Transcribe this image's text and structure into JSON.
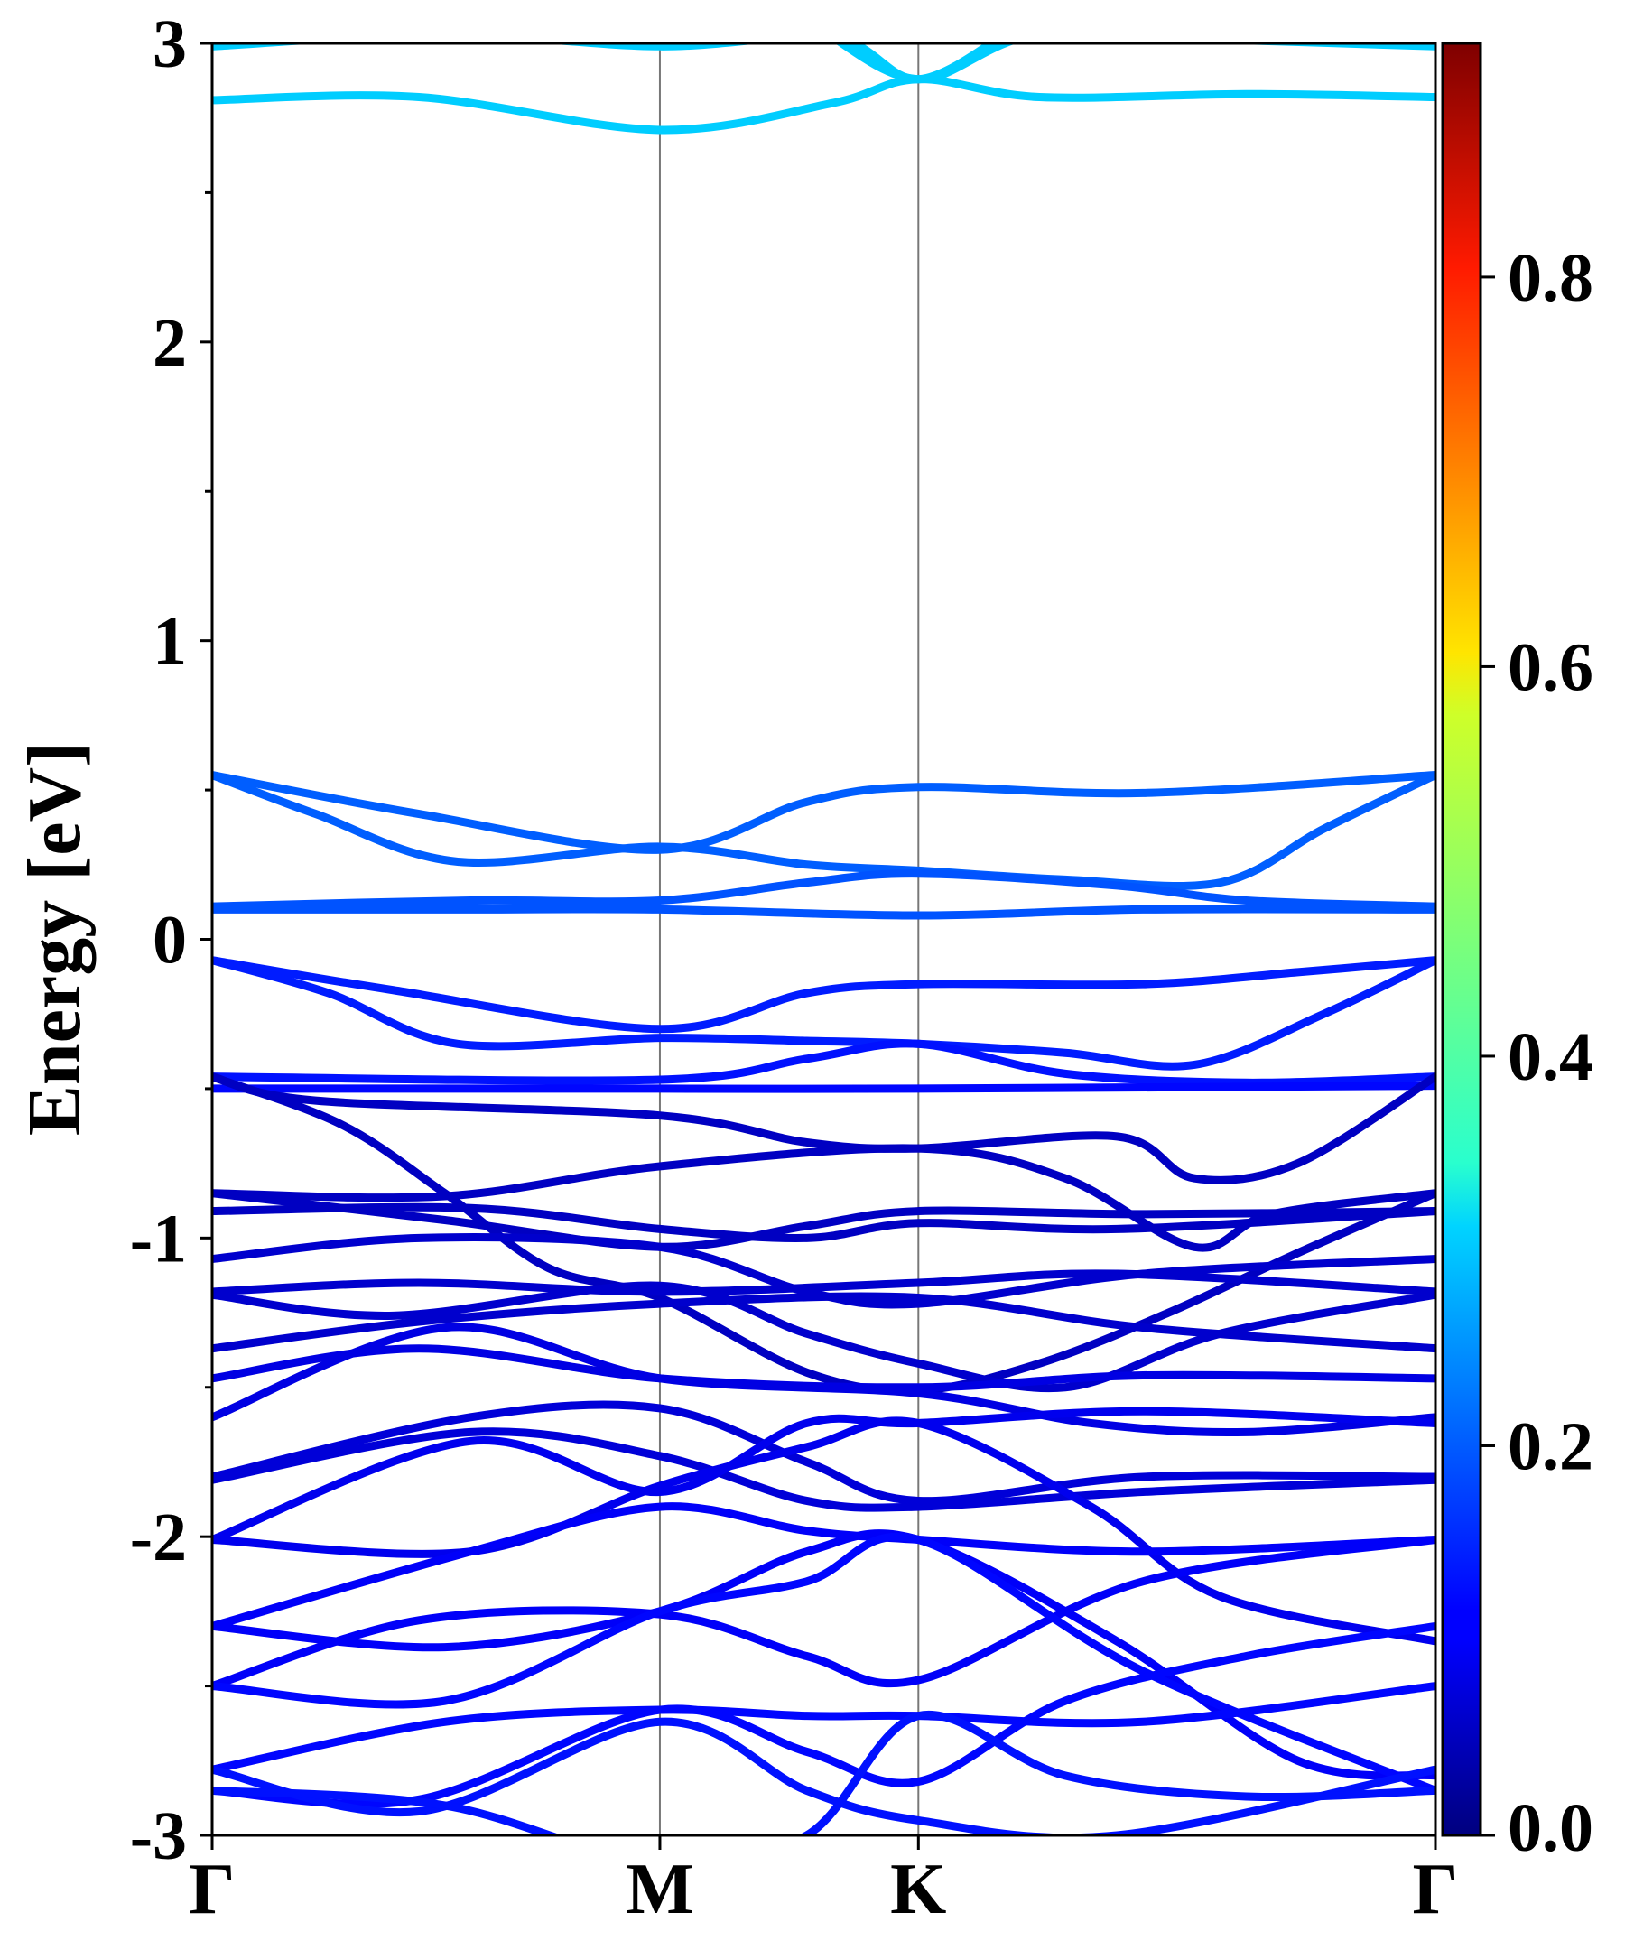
{
  "chart_data": {
    "type": "line",
    "ylabel": "Energy [eV]",
    "ylim": [
      -3,
      3
    ],
    "y_ticks": [
      "-3",
      "-2",
      "-1",
      "0",
      "1",
      "2",
      "3"
    ],
    "x_ticks": [
      "Γ",
      "M",
      "K",
      "Γ"
    ],
    "x_tick_positions": [
      0,
      1.732,
      2.732,
      4.732
    ],
    "xlim": [
      0,
      4.732
    ],
    "grid": false,
    "vertical_lines_at_high_symmetry_points": true,
    "colorbar": {
      "colormap": "jet",
      "range": [
        0,
        0.92
      ],
      "ticks": [
        "0.0",
        "0.2",
        "0.4",
        "0.6",
        "0.8"
      ],
      "tick_values": [
        0,
        0.2,
        0.4,
        0.6,
        0.8
      ]
    },
    "series": [
      {
        "weight": 0.3,
        "points": [
          [
            0,
            2.99
          ],
          [
            0.9,
            3.03
          ],
          [
            1.732,
            2.99
          ],
          [
            2.4,
            3.02
          ],
          [
            2.732,
            2.88
          ],
          [
            3.1,
            3.05
          ]
        ]
      },
      {
        "weight": 0.3,
        "points": [
          [
            0,
            2.81
          ],
          [
            0.8,
            2.82
          ],
          [
            1.732,
            2.71
          ],
          [
            2.4,
            2.8
          ],
          [
            2.732,
            2.88
          ],
          [
            3.2,
            2.82
          ],
          [
            4.0,
            2.83
          ],
          [
            4.732,
            2.82
          ]
        ]
      },
      {
        "weight": 0.3,
        "points": [
          [
            2.35,
            3.05
          ],
          [
            2.732,
            2.88
          ],
          [
            3.2,
            3.03
          ],
          [
            4.0,
            3.01
          ],
          [
            4.732,
            2.99
          ]
        ]
      },
      {
        "weight": 0.2,
        "points": [
          [
            0,
            0.55
          ],
          [
            0.8,
            0.42
          ],
          [
            1.732,
            0.3
          ],
          [
            2.3,
            0.46
          ],
          [
            2.732,
            0.51
          ],
          [
            3.6,
            0.49
          ],
          [
            4.732,
            0.55
          ]
        ]
      },
      {
        "weight": 0.2,
        "points": [
          [
            0,
            0.55
          ],
          [
            0.4,
            0.42
          ],
          [
            0.95,
            0.26
          ],
          [
            1.732,
            0.31
          ],
          [
            2.3,
            0.25
          ],
          [
            2.732,
            0.23
          ],
          [
            3.3,
            0.2
          ],
          [
            3.9,
            0.19
          ],
          [
            4.3,
            0.37
          ],
          [
            4.732,
            0.55
          ]
        ]
      },
      {
        "weight": 0.19,
        "points": [
          [
            0,
            0.11
          ],
          [
            1.0,
            0.13
          ],
          [
            1.732,
            0.13
          ],
          [
            2.3,
            0.19
          ],
          [
            2.732,
            0.22
          ],
          [
            3.5,
            0.18
          ],
          [
            4.0,
            0.13
          ],
          [
            4.732,
            0.11
          ]
        ]
      },
      {
        "weight": 0.19,
        "points": [
          [
            0,
            0.1
          ],
          [
            1.0,
            0.1
          ],
          [
            1.732,
            0.1
          ],
          [
            2.732,
            0.08
          ],
          [
            3.6,
            0.1
          ],
          [
            4.732,
            0.1
          ]
        ]
      },
      {
        "weight": 0.14,
        "points": [
          [
            0,
            -0.07
          ],
          [
            0.7,
            -0.17
          ],
          [
            1.732,
            -0.3
          ],
          [
            2.3,
            -0.18
          ],
          [
            2.732,
            -0.15
          ],
          [
            3.6,
            -0.15
          ],
          [
            4.2,
            -0.11
          ],
          [
            4.732,
            -0.07
          ]
        ]
      },
      {
        "weight": 0.14,
        "points": [
          [
            0,
            -0.07
          ],
          [
            0.45,
            -0.18
          ],
          [
            0.95,
            -0.35
          ],
          [
            1.732,
            -0.33
          ],
          [
            2.3,
            -0.34
          ],
          [
            2.732,
            -0.35
          ],
          [
            3.3,
            -0.38
          ],
          [
            3.8,
            -0.42
          ],
          [
            4.3,
            -0.25
          ],
          [
            4.732,
            -0.07
          ]
        ]
      },
      {
        "weight": 0.13,
        "points": [
          [
            0,
            -0.46
          ],
          [
            1.732,
            -0.47
          ],
          [
            2.3,
            -0.4
          ],
          [
            2.732,
            -0.35
          ],
          [
            3.3,
            -0.45
          ],
          [
            4.0,
            -0.48
          ],
          [
            4.732,
            -0.46
          ]
        ]
      },
      {
        "weight": 0.12,
        "points": [
          [
            0,
            -0.5
          ],
          [
            1.732,
            -0.5
          ],
          [
            2.732,
            -0.5
          ],
          [
            4.732,
            -0.49
          ]
        ]
      },
      {
        "weight": 0.06,
        "points": [
          [
            0,
            -0.46
          ],
          [
            0.4,
            -0.54
          ],
          [
            1.732,
            -0.59
          ],
          [
            2.3,
            -0.68
          ],
          [
            2.732,
            -0.7
          ],
          [
            3.5,
            -0.66
          ],
          [
            3.8,
            -0.8
          ],
          [
            4.2,
            -0.75
          ],
          [
            4.732,
            -0.46
          ]
        ]
      },
      {
        "weight": 0.06,
        "points": [
          [
            0,
            -0.46
          ],
          [
            0.5,
            -0.62
          ],
          [
            0.9,
            -0.85
          ],
          [
            1.3,
            -1.1
          ],
          [
            1.732,
            -1.2
          ],
          [
            2.3,
            -1.45
          ],
          [
            2.732,
            -1.51
          ],
          [
            3.2,
            -1.42
          ],
          [
            3.7,
            -1.25
          ],
          [
            4.2,
            -1.05
          ],
          [
            4.732,
            -0.85
          ]
        ]
      },
      {
        "weight": 0.06,
        "points": [
          [
            0,
            -0.85
          ],
          [
            0.9,
            -0.86
          ],
          [
            1.732,
            -0.76
          ],
          [
            2.732,
            -0.7
          ],
          [
            3.3,
            -0.8
          ],
          [
            3.8,
            -1.03
          ],
          [
            4.1,
            -0.92
          ],
          [
            4.732,
            -0.85
          ]
        ]
      },
      {
        "weight": 0.06,
        "points": [
          [
            0,
            -0.85
          ],
          [
            0.9,
            -0.94
          ],
          [
            1.732,
            -1.03
          ],
          [
            2.3,
            -0.96
          ],
          [
            2.732,
            -0.91
          ],
          [
            3.6,
            -0.92
          ],
          [
            4.732,
            -0.91
          ]
        ]
      },
      {
        "weight": 0.06,
        "points": [
          [
            0,
            -0.91
          ],
          [
            1.0,
            -0.9
          ],
          [
            1.732,
            -0.97
          ],
          [
            2.3,
            -1.0
          ],
          [
            2.732,
            -0.95
          ],
          [
            3.5,
            -0.97
          ],
          [
            4.732,
            -0.91
          ]
        ]
      },
      {
        "weight": 0.07,
        "points": [
          [
            0,
            -1.07
          ],
          [
            0.8,
            -1.0
          ],
          [
            1.732,
            -1.03
          ],
          [
            2.3,
            -1.18
          ],
          [
            2.732,
            -1.22
          ],
          [
            3.6,
            -1.12
          ],
          [
            4.732,
            -1.07
          ]
        ]
      },
      {
        "weight": 0.07,
        "points": [
          [
            0,
            -1.18
          ],
          [
            0.8,
            -1.15
          ],
          [
            1.732,
            -1.18
          ],
          [
            2.732,
            -1.15
          ],
          [
            3.5,
            -1.12
          ],
          [
            4.732,
            -1.18
          ]
        ]
      },
      {
        "weight": 0.07,
        "points": [
          [
            0,
            -1.19
          ],
          [
            0.7,
            -1.26
          ],
          [
            1.732,
            -1.16
          ],
          [
            2.3,
            -1.32
          ],
          [
            2.732,
            -1.42
          ],
          [
            3.3,
            -1.5
          ],
          [
            3.9,
            -1.32
          ],
          [
            4.732,
            -1.19
          ]
        ]
      },
      {
        "weight": 0.07,
        "points": [
          [
            0,
            -1.37
          ],
          [
            0.8,
            -1.28
          ],
          [
            1.732,
            -1.22
          ],
          [
            2.732,
            -1.2
          ],
          [
            3.6,
            -1.3
          ],
          [
            4.732,
            -1.37
          ]
        ]
      },
      {
        "weight": 0.09,
        "points": [
          [
            0,
            -1.47
          ],
          [
            0.8,
            -1.37
          ],
          [
            1.732,
            -1.47
          ],
          [
            2.732,
            -1.5
          ],
          [
            3.6,
            -1.46
          ],
          [
            4.732,
            -1.47
          ]
        ]
      },
      {
        "weight": 0.09,
        "points": [
          [
            0,
            -1.6
          ],
          [
            0.9,
            -1.3
          ],
          [
            1.732,
            -1.47
          ],
          [
            2.732,
            -1.52
          ],
          [
            3.4,
            -1.62
          ],
          [
            4.0,
            -1.65
          ],
          [
            4.732,
            -1.6
          ]
        ]
      },
      {
        "weight": 0.08,
        "points": [
          [
            0,
            -1.8
          ],
          [
            1.0,
            -1.6
          ],
          [
            1.732,
            -1.57
          ],
          [
            2.3,
            -1.75
          ],
          [
            2.732,
            -1.88
          ],
          [
            3.6,
            -1.8
          ],
          [
            4.732,
            -1.8
          ]
        ]
      },
      {
        "weight": 0.08,
        "points": [
          [
            0,
            -1.81
          ],
          [
            1.0,
            -1.65
          ],
          [
            1.732,
            -1.73
          ],
          [
            2.3,
            -1.88
          ],
          [
            2.732,
            -1.9
          ],
          [
            3.6,
            -1.85
          ],
          [
            4.732,
            -1.81
          ]
        ]
      },
      {
        "weight": 0.1,
        "points": [
          [
            0,
            -2.01
          ],
          [
            1.0,
            -1.68
          ],
          [
            1.732,
            -1.85
          ],
          [
            2.3,
            -1.62
          ],
          [
            2.732,
            -1.62
          ],
          [
            3.6,
            -1.58
          ],
          [
            4.732,
            -1.62
          ]
        ]
      },
      {
        "weight": 0.1,
        "points": [
          [
            0,
            -2.01
          ],
          [
            1.0,
            -2.05
          ],
          [
            1.732,
            -1.83
          ],
          [
            2.3,
            -1.7
          ],
          [
            2.732,
            -1.62
          ],
          [
            3.4,
            -1.9
          ],
          [
            3.9,
            -2.2
          ],
          [
            4.732,
            -2.35
          ]
        ]
      },
      {
        "weight": 0.11,
        "points": [
          [
            0,
            -2.3
          ],
          [
            1.0,
            -2.05
          ],
          [
            1.732,
            -1.9
          ],
          [
            2.3,
            -1.98
          ],
          [
            2.732,
            -2.01
          ],
          [
            3.6,
            -2.05
          ],
          [
            4.732,
            -2.01
          ]
        ]
      },
      {
        "weight": 0.11,
        "points": [
          [
            0,
            -2.3
          ],
          [
            0.9,
            -2.37
          ],
          [
            1.732,
            -2.25
          ],
          [
            2.3,
            -2.05
          ],
          [
            2.732,
            -2.01
          ],
          [
            3.5,
            -2.35
          ],
          [
            4.2,
            -2.75
          ],
          [
            4.732,
            -2.8
          ]
        ]
      },
      {
        "weight": 0.11,
        "points": [
          [
            0,
            -2.5
          ],
          [
            0.8,
            -2.28
          ],
          [
            1.732,
            -2.26
          ],
          [
            2.3,
            -2.4
          ],
          [
            2.732,
            -2.48
          ],
          [
            3.6,
            -2.15
          ],
          [
            4.732,
            -2.01
          ]
        ]
      },
      {
        "weight": 0.12,
        "points": [
          [
            0,
            -2.5
          ],
          [
            0.9,
            -2.55
          ],
          [
            1.732,
            -2.25
          ],
          [
            2.3,
            -2.15
          ],
          [
            2.732,
            -2.01
          ],
          [
            3.6,
            -2.45
          ],
          [
            4.732,
            -2.85
          ]
        ]
      },
      {
        "weight": 0.12,
        "points": [
          [
            0,
            -2.78
          ],
          [
            0.9,
            -2.62
          ],
          [
            1.732,
            -2.58
          ],
          [
            2.3,
            -2.6
          ],
          [
            2.732,
            -2.6
          ],
          [
            3.6,
            -2.62
          ],
          [
            4.732,
            -2.5
          ]
        ]
      },
      {
        "weight": 0.12,
        "points": [
          [
            0,
            -2.85
          ],
          [
            0.8,
            -2.88
          ],
          [
            1.732,
            -2.58
          ],
          [
            2.3,
            -2.72
          ],
          [
            2.732,
            -2.82
          ],
          [
            3.3,
            -2.55
          ],
          [
            4.0,
            -2.4
          ],
          [
            4.732,
            -2.3
          ]
        ]
      },
      {
        "weight": 0.13,
        "points": [
          [
            0,
            -2.78
          ],
          [
            0.8,
            -2.92
          ],
          [
            1.732,
            -2.62
          ],
          [
            2.3,
            -2.85
          ],
          [
            2.732,
            -2.95
          ],
          [
            3.5,
            -3.0
          ],
          [
            4.732,
            -2.78
          ]
        ]
      },
      {
        "weight": 0.13,
        "points": [
          [
            0,
            -2.85
          ],
          [
            0.9,
            -2.9
          ],
          [
            1.732,
            -3.1
          ],
          [
            2.3,
            -3.0
          ],
          [
            2.732,
            -2.6
          ],
          [
            3.3,
            -2.8
          ],
          [
            4.0,
            -2.87
          ],
          [
            4.732,
            -2.85
          ]
        ]
      }
    ]
  }
}
